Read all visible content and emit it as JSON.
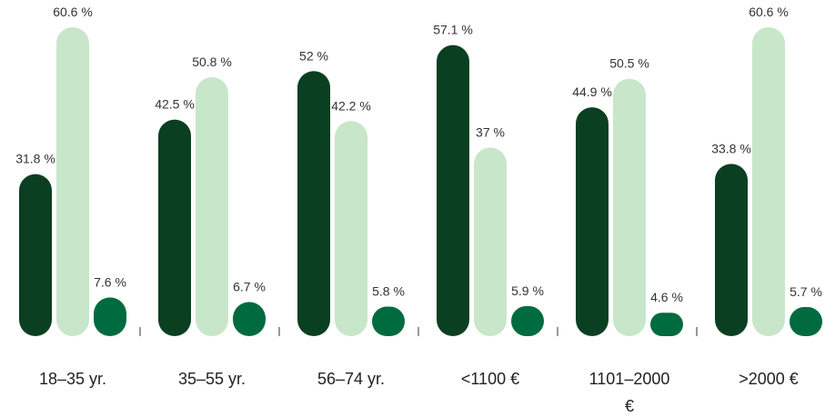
{
  "chart_data": {
    "type": "bar",
    "categories": [
      "18–35 yr.",
      "35–55 yr.",
      "56–74 yr.",
      "<1100 €",
      "1101–2000 €",
      ">2000 €"
    ],
    "series": [
      {
        "color": "#0b3f22",
        "values": [
          31.8,
          42.5,
          52,
          57.1,
          44.9,
          33.8
        ],
        "value_labels": [
          "31.8 %",
          "42.5 %",
          "52 %",
          "57.1 %",
          "44.9 %",
          "33.8 %"
        ]
      },
      {
        "color": "#c8e6c9",
        "values": [
          60.6,
          50.8,
          42.2,
          37,
          50.5,
          60.6
        ],
        "value_labels": [
          "60.6 %",
          "50.8 %",
          "42.2 %",
          "37 %",
          "50.5 %",
          "60.6 %"
        ]
      },
      {
        "color": "#006b3f",
        "values": [
          7.6,
          6.7,
          5.8,
          5.9,
          4.6,
          5.7
        ],
        "value_labels": [
          "7.6 %",
          "6.7 %",
          "5.8 %",
          "5.9 %",
          "4.6 %",
          "5.7 %"
        ]
      }
    ]
  }
}
